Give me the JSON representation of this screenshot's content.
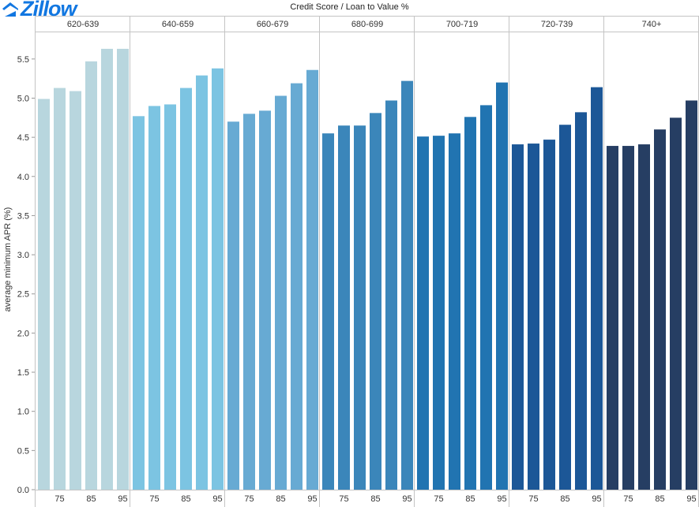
{
  "brand": {
    "name": "Zillow",
    "mark": "®"
  },
  "chart_data": {
    "type": "bar",
    "title": "Credit Score  /  Loan to Value %",
    "ylabel": "average minimum APR (%)",
    "xlabel": "",
    "ylim": [
      0,
      5.75
    ],
    "yticks": [
      "0.0",
      "0.5",
      "1.0",
      "1.5",
      "2.0",
      "2.5",
      "3.0",
      "3.5",
      "4.0",
      "4.5",
      "5.0",
      "5.5"
    ],
    "grid": false,
    "x_tick_labels": [
      "75",
      "85",
      "95"
    ],
    "ltv": [
      70,
      75,
      80,
      85,
      90,
      95
    ],
    "groups": [
      {
        "name": "620-639",
        "color": "#b8d6de",
        "values": [
          4.99,
          5.13,
          5.09,
          5.47,
          5.63,
          5.63
        ]
      },
      {
        "name": "640-659",
        "color": "#7cc4e2",
        "values": [
          4.77,
          4.9,
          4.92,
          5.13,
          5.29,
          5.38
        ]
      },
      {
        "name": "660-679",
        "color": "#67aad3",
        "values": [
          4.7,
          4.8,
          4.84,
          5.03,
          5.19,
          5.36
        ]
      },
      {
        "name": "680-699",
        "color": "#3b86ba",
        "values": [
          4.55,
          4.65,
          4.65,
          4.81,
          4.97,
          5.22
        ]
      },
      {
        "name": "700-719",
        "color": "#2174b1",
        "values": [
          4.51,
          4.52,
          4.55,
          4.76,
          4.91,
          5.2
        ]
      },
      {
        "name": "720-739",
        "color": "#1c5797",
        "values": [
          4.41,
          4.42,
          4.47,
          4.66,
          4.82,
          5.14
        ]
      },
      {
        "name": "740+",
        "color": "#263e63",
        "values": [
          4.39,
          4.39,
          4.41,
          4.6,
          4.75,
          4.97
        ]
      }
    ]
  }
}
